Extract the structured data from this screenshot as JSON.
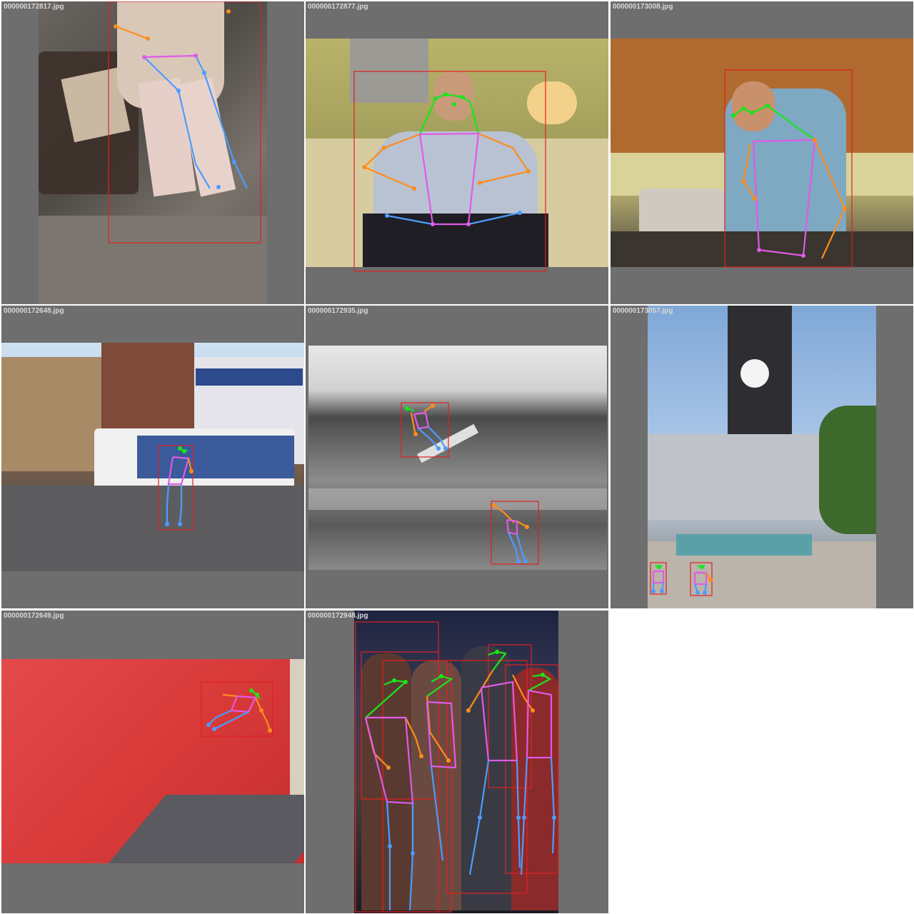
{
  "grid": {
    "cells": [
      {
        "filename": "000000172817.jpg"
      },
      {
        "filename": "000000172877.jpg"
      },
      {
        "filename": "000000173008.jpg"
      },
      {
        "filename": "000000172648.jpg"
      },
      {
        "filename": "000000172935.jpg"
      },
      {
        "filename": "000000173057.jpg"
      },
      {
        "filename": "000000172649.jpg"
      },
      {
        "filename": "000000172948.jpg"
      }
    ]
  },
  "colors": {
    "panel_bg": "#6e6e6e",
    "bbox": "#e02020",
    "head_limbs": "#19e619",
    "arm_limbs": "#ff8c1a",
    "torso_limbs": "#e05ae6",
    "leg_limbs": "#4b9cff"
  }
}
